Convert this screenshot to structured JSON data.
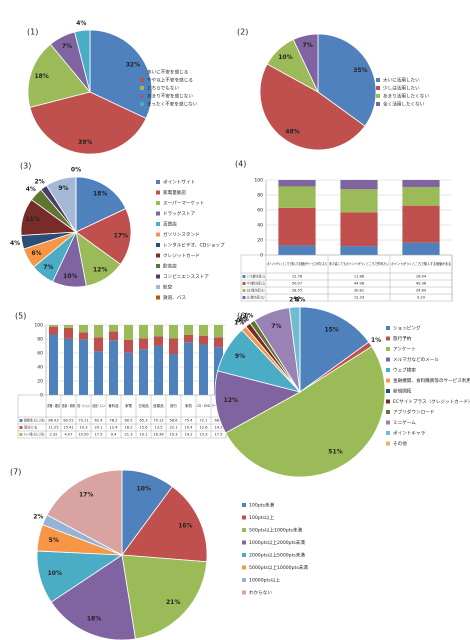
{
  "chart_data": [
    {
      "type": "pie",
      "title": "(1)",
      "labels": [
        "多いに不安を感じる",
        "やや以上不安を感じる",
        "どちらでもない",
        "あまり不安を感じない",
        "まったく不安を感じない"
      ],
      "values": [
        32,
        39,
        18,
        7,
        4
      ],
      "value_labels": [
        "32%",
        "39%",
        "18%",
        "7%",
        "4%"
      ],
      "colors": [
        "#4f81bd",
        "#c0504d",
        "#9bbb59",
        "#8064a2",
        "#4bacc6"
      ]
    },
    {
      "type": "pie",
      "title": "(2)",
      "labels": [
        "大いに活用したい",
        "少しは活用したい",
        "あまり活用したくない",
        "全く活用したくない"
      ],
      "values": [
        35,
        48,
        10,
        7
      ],
      "value_labels": [
        "35%",
        "48%",
        "10%",
        "7%"
      ],
      "colors": [
        "#4f81bd",
        "#c0504d",
        "#9bbb59",
        "#8064a2"
      ]
    },
    {
      "type": "pie",
      "title": "(3)",
      "labels": [
        "ポイントサイト",
        "家電量販店",
        "スーパーマーケット",
        "ドラッグストア",
        "百貨店",
        "ガソリンスタンド",
        "レンタルビデオ、CDショップ",
        "クレジットカード",
        "飲食店",
        "コンビニエンスストア",
        "航空",
        "鉄道、バス"
      ],
      "values": [
        18,
        17,
        12,
        10,
        7,
        6,
        4,
        11,
        4,
        2,
        9,
        0
      ],
      "value_labels": [
        "18%",
        "17%",
        "12%",
        "10%",
        "7%",
        "6%",
        "4%",
        "11%",
        "4%",
        "2%",
        "9%",
        "0%"
      ],
      "colors": [
        "#4f81bd",
        "#c0504d",
        "#9bbb59",
        "#8064a2",
        "#4bacc6",
        "#f79646",
        "#2c4d75",
        "#772c2a",
        "#5f7530",
        "#4d3b62",
        "#a5b8d6",
        "#b65708"
      ]
    },
    {
      "type": "bar",
      "stacked": true,
      "title": "(4)",
      "categories": [
        "ポイントがつくところで購入する価格がサービスが同じなら",
        "多少高くてもポイントがつくところで貯めたい",
        "ポイントがつくところで購入する価値がある"
      ],
      "series": [
        {
          "name": "とても魅力を感じる",
          "color": "#4f81bd",
          "values": [
            12.78,
            11.88,
            16.44
          ]
        },
        {
          "name": "やや魅力を感じる",
          "color": "#c0504d",
          "values": [
            50.07,
            44.98,
            49.38
          ]
        },
        {
          "name": "あまり魅力を感じない",
          "color": "#9bbb59",
          "values": [
            28.55,
            30.81,
            24.89
          ]
        },
        {
          "name": "全く魅力を感じない",
          "color": "#8064a2",
          "values": [
            8.6,
            12.33,
            9.29
          ]
        }
      ],
      "ylim": [
        0,
        100
      ],
      "yticks": [
        0,
        20,
        40,
        60,
        80,
        100
      ],
      "grid": true
    },
    {
      "type": "bar",
      "stacked": true,
      "title": "(5)",
      "categories": [
        "書籍・雑誌",
        "音楽・映像",
        "衣類・ファッション",
        "化粧品・コスメ",
        "食料品",
        "家電",
        "日用品",
        "医薬品",
        "旅行",
        "家具",
        "CD・DVD",
        "ゲーム・玩具"
      ],
      "series": [
        {
          "name": "実店舗で購入することが多い",
          "color": "#4f81bd",
          "values": [
            86.43,
            80.52,
            79.11,
            62.4,
            78.2,
            60.5,
            65.3,
            70.12,
            58.6,
            75.4,
            72.1,
            68.3
          ]
        },
        {
          "name": "両方とも",
          "color": "#c0504d",
          "values": [
            11.25,
            15.41,
            10.3,
            20.1,
            12.4,
            18.2,
            15.6,
            13.5,
            22.1,
            10.4,
            12.6,
            14.2
          ]
        },
        {
          "name": "ネットで購入することが多い",
          "color": "#9bbb59",
          "values": [
            2.32,
            4.07,
            10.59,
            17.5,
            9.4,
            21.3,
            19.1,
            16.38,
            19.3,
            14.2,
            15.3,
            17.5
          ]
        }
      ],
      "ylim": [
        0,
        100
      ],
      "yticks": [
        0,
        20,
        40,
        60,
        80,
        100
      ],
      "grid": true
    },
    {
      "type": "pie",
      "title": "(6)",
      "labels": [
        "ショッピング",
        "旅行予約",
        "アンケート",
        "メルマガなどのメール",
        "ウェブ検索",
        "金融機関、食料購買等のサービス利用",
        "新規開拓",
        "ECサイトプラス（クレジットカード）",
        "アプリダウンロード",
        "ミニゲーム",
        "ポイントキャラ",
        "その他"
      ],
      "values": [
        15,
        1,
        51,
        12,
        9,
        1,
        0,
        1,
        1,
        7,
        2,
        0
      ],
      "value_labels": [
        "15%",
        "1%",
        "51%",
        "12%",
        "9%",
        "1%",
        "0%",
        "1%",
        "1%",
        "7%",
        "2%",
        "0%"
      ],
      "colors": [
        "#4f81bd",
        "#c0504d",
        "#9bbb59",
        "#8064a2",
        "#4bacc6",
        "#f79646",
        "#2c4d75",
        "#772c2a",
        "#5f7530",
        "#9983b5",
        "#6fbdd1",
        "#f9ab6b"
      ]
    },
    {
      "type": "pie",
      "title": "(7)",
      "labels": [
        "100pts未満",
        "100pts以上",
        "500pts以上1000pts未満",
        "1000pts以上2000pts未満",
        "2000pts以上5000pts未満",
        "5000pts以上10000pts未満",
        "10000pts以上",
        "わからない"
      ],
      "values": [
        10,
        16,
        21,
        18,
        10,
        5,
        2,
        17
      ],
      "value_labels": [
        "10%",
        "16%",
        "21%",
        "18%",
        "10%",
        "5%",
        "2%",
        "17%"
      ],
      "colors": [
        "#4f81bd",
        "#c0504d",
        "#9bbb59",
        "#8064a2",
        "#4bacc6",
        "#f79646",
        "#95b3d7",
        "#d9a3a1"
      ]
    }
  ]
}
